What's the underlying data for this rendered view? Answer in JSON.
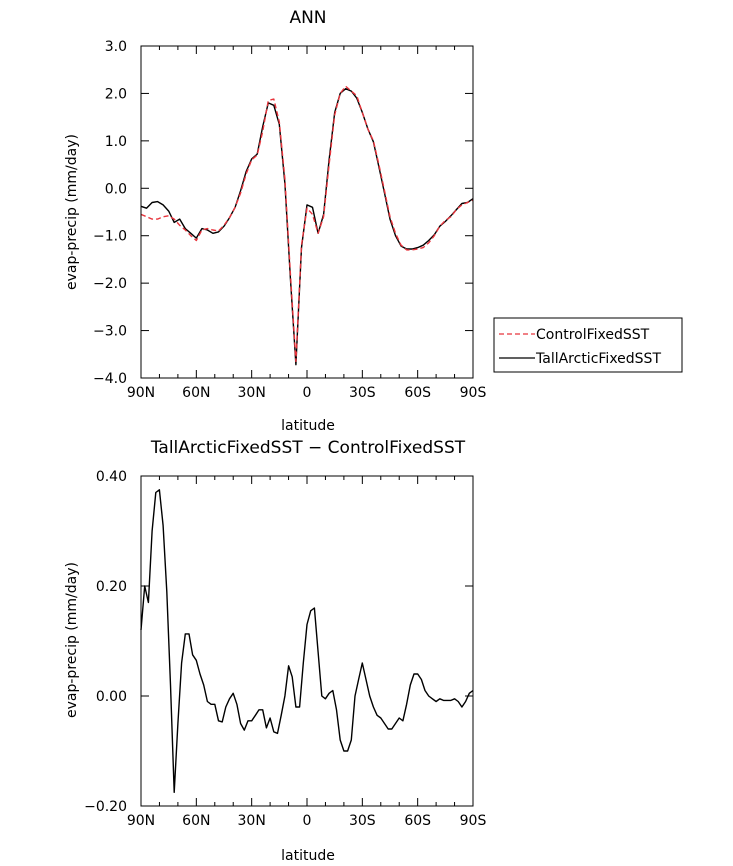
{
  "chart_data": [
    {
      "type": "line",
      "title": "ANN",
      "xlabel": "latitude",
      "ylabel": "evap-precip (mm/day)",
      "xlim": [
        90,
        -90
      ],
      "ylim": [
        -4.0,
        3.0
      ],
      "xticks": [
        90,
        60,
        30,
        0,
        -30,
        -60,
        -90
      ],
      "xtick_labels": [
        "90N",
        "60N",
        "30N",
        "0",
        "30S",
        "60S",
        "90S"
      ],
      "yticks": [
        -4.0,
        -3.0,
        -2.0,
        -1.0,
        0.0,
        1.0,
        2.0,
        3.0
      ],
      "ytick_labels": [
        "−4.0",
        "−3.0",
        "−2.0",
        "−1.0",
        "0.0",
        "1.0",
        "2.0",
        "3.0"
      ],
      "legend_position": "right",
      "series": [
        {
          "name": "ControlFixedSST",
          "color": "#e8343c",
          "dash": "dashed",
          "x": [
            90,
            87,
            84,
            81,
            78,
            75,
            72,
            69,
            66,
            63,
            60,
            57,
            54,
            51,
            48,
            45,
            42,
            39,
            36,
            33,
            30,
            27,
            24,
            21,
            18,
            15,
            12,
            9,
            6,
            3,
            0,
            -3,
            -6,
            -9,
            -12,
            -15,
            -18,
            -21,
            -24,
            -27,
            -30,
            -33,
            -36,
            -39,
            -42,
            -45,
            -48,
            -51,
            -54,
            -57,
            -60,
            -63,
            -66,
            -69,
            -72,
            -75,
            -78,
            -81,
            -84,
            -87,
            -90
          ],
          "y": [
            -0.55,
            -0.6,
            -0.65,
            -0.65,
            -0.6,
            -0.58,
            -0.65,
            -0.78,
            -0.88,
            -1.0,
            -1.1,
            -0.88,
            -0.85,
            -0.88,
            -0.9,
            -0.78,
            -0.62,
            -0.4,
            -0.1,
            0.3,
            0.6,
            0.7,
            1.2,
            1.85,
            1.88,
            1.4,
            0.2,
            -1.8,
            -3.65,
            -1.2,
            -0.42,
            -0.55,
            -0.95,
            -0.6,
            0.5,
            1.55,
            2.0,
            2.15,
            2.05,
            1.95,
            1.6,
            1.25,
            1.0,
            0.5,
            -0.05,
            -0.6,
            -0.95,
            -1.2,
            -1.3,
            -1.3,
            -1.28,
            -1.25,
            -1.15,
            -1.0,
            -0.8,
            -0.68,
            -0.6,
            -0.45,
            -0.35,
            -0.3,
            -0.25
          ]
        },
        {
          "name": "TallArcticFixedSST",
          "color": "#000000",
          "dash": "solid",
          "x": [
            90,
            87,
            84,
            81,
            78,
            75,
            72,
            69,
            66,
            63,
            60,
            57,
            54,
            51,
            48,
            45,
            42,
            39,
            36,
            33,
            30,
            27,
            24,
            21,
            18,
            15,
            12,
            9,
            6,
            3,
            0,
            -3,
            -6,
            -9,
            -12,
            -15,
            -18,
            -21,
            -24,
            -27,
            -30,
            -33,
            -36,
            -39,
            -42,
            -45,
            -48,
            -51,
            -54,
            -57,
            -60,
            -63,
            -66,
            -69,
            -72,
            -75,
            -78,
            -81,
            -84,
            -87,
            -90
          ],
          "y": [
            -0.38,
            -0.42,
            -0.3,
            -0.28,
            -0.35,
            -0.48,
            -0.72,
            -0.65,
            -0.85,
            -0.95,
            -1.05,
            -0.85,
            -0.88,
            -0.95,
            -0.92,
            -0.8,
            -0.62,
            -0.4,
            -0.05,
            0.35,
            0.62,
            0.72,
            1.3,
            1.8,
            1.75,
            1.35,
            0.1,
            -1.9,
            -3.72,
            -1.25,
            -0.35,
            -0.4,
            -0.95,
            -0.55,
            0.6,
            1.6,
            2.0,
            2.1,
            2.05,
            1.9,
            1.6,
            1.25,
            0.98,
            0.45,
            -0.1,
            -0.65,
            -1.0,
            -1.22,
            -1.28,
            -1.28,
            -1.25,
            -1.2,
            -1.1,
            -0.98,
            -0.8,
            -0.7,
            -0.58,
            -0.45,
            -0.32,
            -0.3,
            -0.22
          ]
        }
      ]
    },
    {
      "type": "line",
      "title": "TallArcticFixedSST − ControlFixedSST",
      "xlabel": "latitude",
      "ylabel": "evap-precip (mm/day)",
      "xlim": [
        90,
        -90
      ],
      "ylim": [
        -0.2,
        0.4
      ],
      "xticks": [
        90,
        60,
        30,
        0,
        -30,
        -60,
        -90
      ],
      "xtick_labels": [
        "90N",
        "60N",
        "30N",
        "0",
        "30S",
        "60S",
        "90S"
      ],
      "yticks": [
        -0.2,
        0.0,
        0.2,
        0.4
      ],
      "ytick_labels": [
        "−0.20",
        "0.00",
        "0.20",
        "0.40"
      ],
      "series": [
        {
          "name": "",
          "color": "#000000",
          "dash": "solid",
          "x": [
            90,
            88,
            86,
            84,
            82,
            80,
            78,
            76,
            74,
            72,
            70,
            68,
            66,
            64,
            62,
            60,
            58,
            56,
            54,
            52,
            50,
            48,
            46,
            44,
            42,
            40,
            38,
            36,
            34,
            32,
            30,
            28,
            26,
            24,
            22,
            20,
            18,
            16,
            14,
            12,
            10,
            8,
            6,
            4,
            2,
            0,
            -2,
            -4,
            -6,
            -8,
            -10,
            -12,
            -14,
            -16,
            -18,
            -20,
            -22,
            -24,
            -26,
            -28,
            -30,
            -32,
            -34,
            -36,
            -38,
            -40,
            -42,
            -44,
            -46,
            -48,
            -50,
            -52,
            -54,
            -56,
            -58,
            -60,
            -62,
            -64,
            -66,
            -68,
            -70,
            -72,
            -74,
            -76,
            -78,
            -80,
            -82,
            -84,
            -86,
            -88,
            -90
          ],
          "y": [
            0.12,
            0.2,
            0.17,
            0.3,
            0.37,
            0.375,
            0.31,
            0.19,
            0.02,
            -0.175,
            -0.05,
            0.06,
            0.113,
            0.113,
            0.075,
            0.065,
            0.04,
            0.02,
            -0.01,
            -0.015,
            -0.015,
            -0.045,
            -0.047,
            -0.02,
            -0.005,
            0.005,
            -0.015,
            -0.05,
            -0.062,
            -0.045,
            -0.045,
            -0.035,
            -0.025,
            -0.025,
            -0.058,
            -0.04,
            -0.065,
            -0.068,
            -0.035,
            0.0,
            0.055,
            0.035,
            -0.02,
            -0.02,
            0.06,
            0.13,
            0.155,
            0.16,
            0.08,
            0.0,
            -0.005,
            0.005,
            0.01,
            -0.025,
            -0.08,
            -0.1,
            -0.1,
            -0.08,
            0.0,
            0.03,
            0.06,
            0.03,
            0.0,
            -0.02,
            -0.035,
            -0.04,
            -0.05,
            -0.06,
            -0.06,
            -0.05,
            -0.04,
            -0.045,
            -0.015,
            0.02,
            0.04,
            0.04,
            0.03,
            0.01,
            0.0,
            -0.005,
            -0.01,
            -0.005,
            -0.008,
            -0.008,
            -0.008,
            -0.005,
            -0.01,
            -0.02,
            -0.01,
            0.005,
            0.01
          ]
        }
      ]
    }
  ]
}
